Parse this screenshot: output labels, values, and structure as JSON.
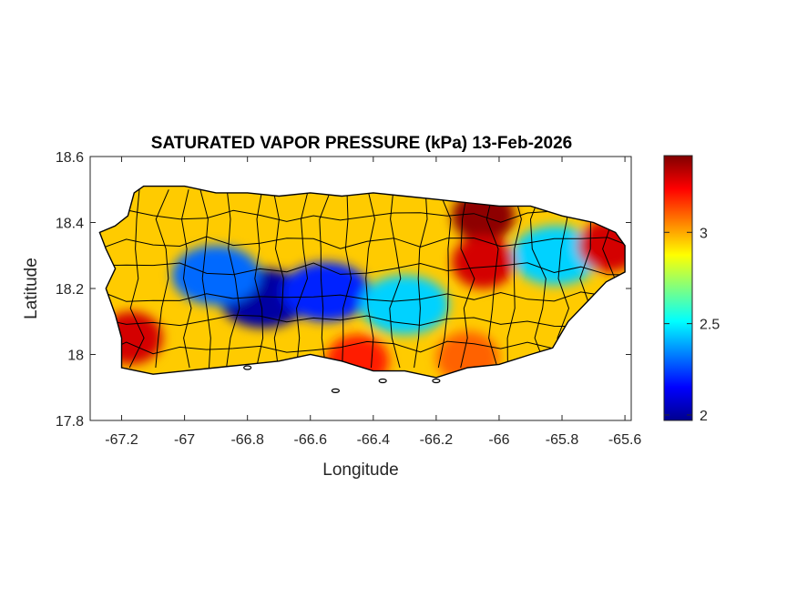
{
  "chart_data": {
    "type": "heatmap",
    "title": "SATURATED VAPOR PRESSURE (kPa) 13-Feb-2026",
    "xlabel": "Longitude",
    "ylabel": "Latitude",
    "xlim": [
      -67.3,
      -65.58
    ],
    "ylim": [
      17.8,
      18.6
    ],
    "xticks": [
      -67.2,
      -67,
      -66.8,
      -66.6,
      -66.4,
      -66.2,
      -66,
      -65.8,
      -65.6
    ],
    "yticks": [
      17.8,
      18,
      18.2,
      18.4,
      18.6
    ],
    "colorbar": {
      "colormap": "jet",
      "clim": [
        1.97,
        3.42
      ],
      "ticks": [
        2,
        2.5,
        3
      ],
      "placement": "right"
    },
    "grid": false,
    "region": "Puerto Rico with municipal boundaries",
    "field_features": [
      {
        "feature": "low",
        "lon": -66.75,
        "lat": 18.17,
        "value": 2.0
      },
      {
        "feature": "low",
        "lon": -66.55,
        "lat": 18.19,
        "value": 2.2
      },
      {
        "feature": "low",
        "lon": -66.9,
        "lat": 18.24,
        "value": 2.3
      },
      {
        "feature": "low",
        "lon": -66.3,
        "lat": 18.15,
        "value": 2.45
      },
      {
        "feature": "low",
        "lon": -65.82,
        "lat": 18.3,
        "value": 2.45
      },
      {
        "feature": "high",
        "lon": -67.17,
        "lat": 18.05,
        "value": 3.3
      },
      {
        "feature": "high",
        "lon": -66.05,
        "lat": 18.42,
        "value": 3.4
      },
      {
        "feature": "high",
        "lon": -65.65,
        "lat": 18.33,
        "value": 3.3
      },
      {
        "feature": "high",
        "lon": -66.45,
        "lat": 17.98,
        "value": 3.2
      },
      {
        "feature": "high",
        "lon": -66.1,
        "lat": 17.99,
        "value": 3.1
      },
      {
        "feature": "high",
        "lon": -66.05,
        "lat": 18.28,
        "value": 3.3
      }
    ]
  }
}
